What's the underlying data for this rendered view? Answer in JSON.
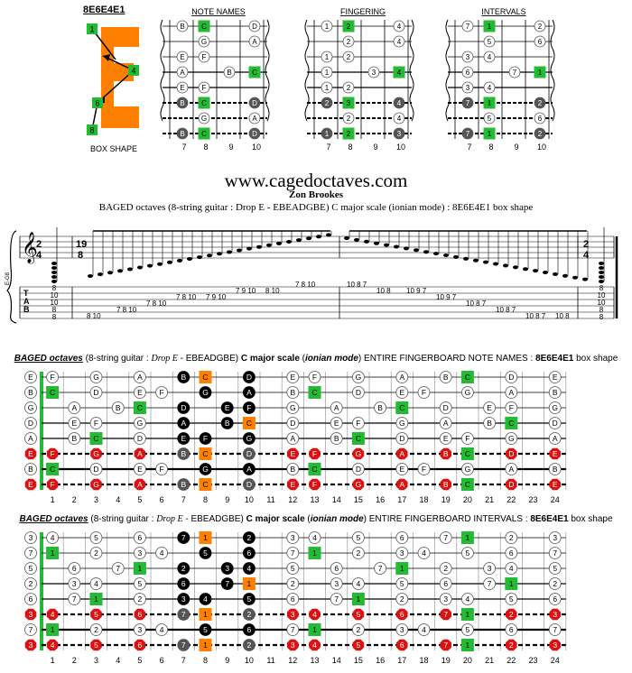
{
  "box_code": "8E6E4E1",
  "box_shape_label": "BOX SHAPE",
  "box_numbers": [
    "1",
    "4",
    "6",
    "8"
  ],
  "diagrams": {
    "titles": [
      "NOTE NAMES",
      "FINGERING",
      "INTERVALS"
    ],
    "frets": [
      "7",
      "8",
      "9",
      "10"
    ]
  },
  "website": "www.cagedoctaves.com",
  "author": "Zon Brookes",
  "description": "BAGED octaves (8-string guitar : Drop E - EBEADGBE) C major scale (ionian mode) : 8E6E4E1 box shape",
  "notation": {
    "time_signature_left": [
      "2",
      "4"
    ],
    "time_signature_mid": [
      "19",
      "8"
    ],
    "time_signature_right": [
      "2",
      "4"
    ],
    "tuning_label": "E-G8",
    "tab_letters": [
      "T",
      "A",
      "B"
    ],
    "tab_left_chord": [
      "8",
      "10",
      "10",
      "8",
      "8"
    ],
    "tab_right_chord": [
      "8",
      "10",
      "10",
      "8",
      "8"
    ],
    "tab_run": [
      "8 10",
      "7 8 10",
      "7 8 10",
      "7 8 10",
      "7 9 10",
      "7 9 10",
      "8 10",
      "7 8 10",
      "10 8 7",
      "10 8",
      "10 9 7",
      "10 9 7",
      "10 8 7",
      "10 8 7",
      "10 8 7",
      "10 8"
    ]
  },
  "board_titles": {
    "notes": {
      "prefix": "BAGED octaves",
      "guitar": "(8-string guitar :",
      "tuning": "Drop E",
      "tuning_rest": "- EBEADGBE)",
      "scale": "C major scale",
      "mode": "ionian mode",
      "what": "ENTIRE FINGERBOARD NOTE NAMES :",
      "box": "8E6E4E1",
      "suffix": "box shape"
    },
    "intervals": {
      "prefix": "BAGED octaves",
      "guitar": "(8-string guitar :",
      "tuning": "Drop E",
      "tuning_rest": "- EBEADGBE)",
      "scale": "C major scale",
      "mode": "ionian mode",
      "what": "ENTIRE FINGERBOARD INTERVALS :",
      "box": "8E6E4E1",
      "suffix": "box shape"
    }
  },
  "fret_numbers": [
    "1",
    "2",
    "3",
    "4",
    "5",
    "6",
    "7",
    "8",
    "9",
    "10",
    "11",
    "12",
    "13",
    "14",
    "15",
    "16",
    "17",
    "18",
    "19",
    "20",
    "21",
    "22",
    "23",
    "24"
  ],
  "colors": {
    "root_green": "#22bb33",
    "box_orange": "#ff8000",
    "red_low": "#dd1111",
    "black": "#000000",
    "grey": "#555555"
  },
  "open_notes": [
    "E",
    "B",
    "G",
    "D",
    "A",
    "E",
    "B",
    "E"
  ],
  "open_intervals": [
    "3",
    "7",
    "5",
    "2",
    "6",
    "3",
    "7",
    "3"
  ],
  "note_rows": [
    [
      "F",
      "",
      "G",
      "",
      "A",
      "",
      "B",
      "C",
      "",
      "D",
      "",
      "E",
      "F",
      "",
      "G",
      "",
      "A",
      "",
      "B",
      "C",
      "",
      "D",
      "",
      "E"
    ],
    [
      "C",
      "",
      "D",
      "",
      "E",
      "F",
      "",
      "G",
      "",
      "A",
      "",
      "B",
      "C",
      "",
      "D",
      "",
      "E",
      "F",
      "",
      "G",
      "",
      "A",
      "",
      "B"
    ],
    [
      "",
      "A",
      "",
      "B",
      "C",
      "",
      "D",
      "",
      "E",
      "F",
      "",
      "G",
      "",
      "A",
      "",
      "B",
      "C",
      "",
      "D",
      "",
      "E",
      "F",
      "",
      "G"
    ],
    [
      "",
      "E",
      "F",
      "",
      "G",
      "",
      "A",
      "",
      "B",
      "C",
      "",
      "D",
      "",
      "E",
      "F",
      "",
      "G",
      "",
      "A",
      "",
      "B",
      "C",
      "",
      "D"
    ],
    [
      "",
      "B",
      "C",
      "",
      "D",
      "",
      "E",
      "F",
      "",
      "G",
      "",
      "A",
      "",
      "B",
      "C",
      "",
      "D",
      "",
      "E",
      "F",
      "",
      "G",
      "",
      "A"
    ],
    [
      "F",
      "",
      "G",
      "",
      "A",
      "",
      "B",
      "C",
      "",
      "D",
      "",
      "E",
      "F",
      "",
      "G",
      "",
      "A",
      "",
      "B",
      "C",
      "",
      "D",
      "",
      "E"
    ],
    [
      "C",
      "",
      "D",
      "",
      "E",
      "F",
      "",
      "G",
      "",
      "A",
      "",
      "B",
      "C",
      "",
      "D",
      "",
      "E",
      "F",
      "",
      "G",
      "",
      "A",
      "",
      "B"
    ],
    [
      "F",
      "",
      "G",
      "",
      "A",
      "",
      "B",
      "C",
      "",
      "D",
      "",
      "E",
      "F",
      "",
      "G",
      "",
      "A",
      "",
      "B",
      "C",
      "",
      "D",
      "",
      "E"
    ]
  ],
  "interval_rows": [
    [
      "4",
      "",
      "5",
      "",
      "6",
      "",
      "7",
      "1",
      "",
      "2",
      "",
      "3",
      "4",
      "",
      "5",
      "",
      "6",
      "",
      "7",
      "1",
      "",
      "2",
      "",
      "3"
    ],
    [
      "1",
      "",
      "2",
      "",
      "3",
      "4",
      "",
      "5",
      "",
      "6",
      "",
      "7",
      "1",
      "",
      "2",
      "",
      "3",
      "4",
      "",
      "5",
      "",
      "6",
      "",
      "7"
    ],
    [
      "",
      "6",
      "",
      "7",
      "1",
      "",
      "2",
      "",
      "3",
      "4",
      "",
      "5",
      "",
      "6",
      "",
      "7",
      "1",
      "",
      "2",
      "",
      "3",
      "4",
      "",
      "5"
    ],
    [
      "",
      "3",
      "4",
      "",
      "5",
      "",
      "6",
      "",
      "7",
      "1",
      "",
      "2",
      "",
      "3",
      "4",
      "",
      "5",
      "",
      "6",
      "",
      "7",
      "1",
      "",
      "2"
    ],
    [
      "",
      "7",
      "1",
      "",
      "2",
      "",
      "3",
      "4",
      "",
      "5",
      "",
      "6",
      "",
      "7",
      "1",
      "",
      "2",
      "",
      "3",
      "4",
      "",
      "5",
      "",
      "6"
    ],
    [
      "4",
      "",
      "5",
      "",
      "6",
      "",
      "7",
      "1",
      "",
      "2",
      "",
      "3",
      "4",
      "",
      "5",
      "",
      "6",
      "",
      "7",
      "1",
      "",
      "2",
      "",
      "3"
    ],
    [
      "1",
      "",
      "2",
      "",
      "3",
      "4",
      "",
      "5",
      "",
      "6",
      "",
      "7",
      "1",
      "",
      "2",
      "",
      "3",
      "4",
      "",
      "5",
      "",
      "6",
      "",
      "7"
    ],
    [
      "4",
      "",
      "5",
      "",
      "6",
      "",
      "7",
      "1",
      "",
      "2",
      "",
      "3",
      "4",
      "",
      "5",
      "",
      "6",
      "",
      "7",
      "1",
      "",
      "2",
      "",
      "3"
    ]
  ]
}
